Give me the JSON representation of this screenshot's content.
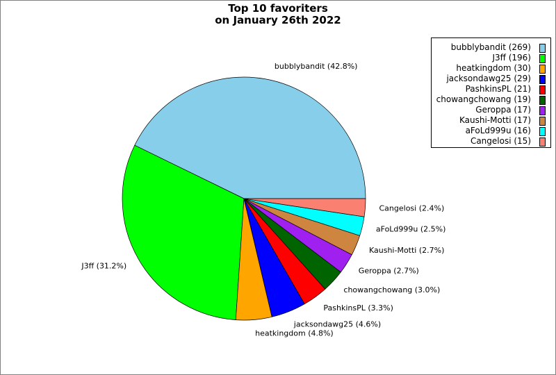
{
  "chart_data": {
    "type": "pie",
    "title_lines": [
      "Top 10 favoriters",
      "on January 26th 2022"
    ],
    "slices": [
      {
        "name": "bubblybandit",
        "value": 269,
        "pct_label": "bubblybandit (42.8%)",
        "legend": "bubblybandit (269)",
        "color": "#87CEEB"
      },
      {
        "name": "J3ff",
        "value": 196,
        "pct_label": "J3ff (31.2%)",
        "legend": "J3ff (196)",
        "color": "#00FF00"
      },
      {
        "name": "heatkingdom",
        "value": 30,
        "pct_label": "heatkingdom (4.8%)",
        "legend": "heatkingdom (30)",
        "color": "#FFA500"
      },
      {
        "name": "jacksondawg25",
        "value": 29,
        "pct_label": "jacksondawg25 (4.6%)",
        "legend": "jacksondawg25 (29)",
        "color": "#0000FF"
      },
      {
        "name": "PashkinsPL",
        "value": 21,
        "pct_label": "PashkinsPL (3.3%)",
        "legend": "PashkinsPL (21)",
        "color": "#FF0000"
      },
      {
        "name": "chowangchowang",
        "value": 19,
        "pct_label": "chowangchowang (3.0%)",
        "legend": "chowangchowang (19)",
        "color": "#006400"
      },
      {
        "name": "Geroppa",
        "value": 17,
        "pct_label": "Geroppa (2.7%)",
        "legend": "Geroppa (17)",
        "color": "#A020F0"
      },
      {
        "name": "Kaushi-Motti",
        "value": 17,
        "pct_label": "Kaushi-Motti (2.7%)",
        "legend": "Kaushi-Motti (17)",
        "color": "#CD853F"
      },
      {
        "name": "aFoLd999u",
        "value": 16,
        "pct_label": "aFoLd999u (2.5%)",
        "legend": "aFoLd999u (16)",
        "color": "#00FFFF"
      },
      {
        "name": "Cangelosi",
        "value": 15,
        "pct_label": "Cangelosi (2.4%)",
        "legend": "Cangelosi (15)",
        "color": "#FA8072"
      }
    ],
    "start_angle_deg": 0,
    "direction": "counterclockwise",
    "legend_position": "top-right"
  }
}
